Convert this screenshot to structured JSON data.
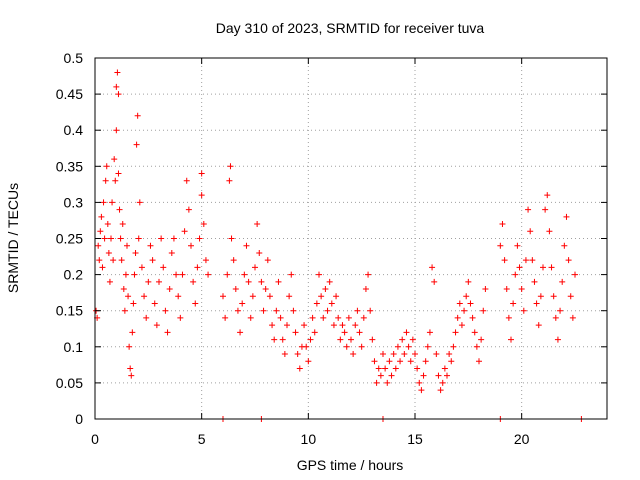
{
  "chart_data": {
    "type": "scatter",
    "title": "Day 310 of 2023, SRMTID for receiver tuva",
    "xlabel": "GPS time / hours",
    "ylabel": "SRMTID / TECUs",
    "xlim": [
      0,
      24
    ],
    "ylim": [
      0,
      0.5
    ],
    "x_ticks": [
      0,
      5,
      10,
      15,
      20
    ],
    "y_ticks": [
      0,
      0.05,
      0.1,
      0.15,
      0.2,
      0.25,
      0.3,
      0.35,
      0.4,
      0.45,
      0.5
    ],
    "x_tick_labels": [
      "0",
      "5",
      "10",
      "15",
      "20"
    ],
    "y_tick_labels": [
      "0",
      "0.05",
      "0.1",
      "0.15",
      "0.2",
      "0.25",
      "0.3",
      "0.35",
      "0.4",
      "0.45",
      "0.5"
    ],
    "grid": true,
    "marker": "+",
    "color": "#ff0000",
    "series": [
      {
        "values_xy": [
          [
            0.05,
            0.15
          ],
          [
            0.1,
            0.14
          ],
          [
            0.15,
            0.24
          ],
          [
            0.2,
            0.22
          ],
          [
            0.25,
            0.26
          ],
          [
            0.3,
            0.28
          ],
          [
            0.35,
            0.21
          ],
          [
            0.4,
            0.3
          ],
          [
            0.45,
            0.25
          ],
          [
            0.5,
            0.33
          ],
          [
            0.55,
            0.35
          ],
          [
            0.6,
            0.27
          ],
          [
            0.65,
            0.23
          ],
          [
            0.7,
            0.19
          ],
          [
            0.75,
            0.25
          ],
          [
            0.8,
            0.3
          ],
          [
            0.85,
            0.22
          ],
          [
            0.9,
            0.36
          ],
          [
            0.95,
            0.33
          ],
          [
            1.0,
            0.4
          ],
          [
            1.0,
            0.46
          ],
          [
            1.05,
            0.48
          ],
          [
            1.1,
            0.45
          ],
          [
            1.1,
            0.34
          ],
          [
            1.15,
            0.29
          ],
          [
            1.2,
            0.25
          ],
          [
            1.25,
            0.22
          ],
          [
            1.3,
            0.27
          ],
          [
            1.35,
            0.18
          ],
          [
            1.4,
            0.15
          ],
          [
            1.45,
            0.2
          ],
          [
            1.5,
            0.24
          ],
          [
            1.55,
            0.17
          ],
          [
            1.6,
            0.1
          ],
          [
            1.65,
            0.07
          ],
          [
            1.7,
            0.06
          ],
          [
            1.75,
            0.12
          ],
          [
            1.8,
            0.16
          ],
          [
            1.85,
            0.2
          ],
          [
            1.9,
            0.23
          ],
          [
            1.95,
            0.38
          ],
          [
            2.0,
            0.42
          ],
          [
            2.05,
            0.25
          ],
          [
            2.1,
            0.3
          ],
          [
            2.2,
            0.21
          ],
          [
            2.3,
            0.17
          ],
          [
            2.4,
            0.14
          ],
          [
            2.5,
            0.19
          ],
          [
            2.6,
            0.24
          ],
          [
            2.7,
            0.22
          ],
          [
            2.8,
            0.16
          ],
          [
            2.9,
            0.13
          ],
          [
            3.0,
            0.19
          ],
          [
            3.1,
            0.25
          ],
          [
            3.2,
            0.21
          ],
          [
            3.3,
            0.15
          ],
          [
            3.4,
            0.12
          ],
          [
            3.5,
            0.18
          ],
          [
            3.6,
            0.23
          ],
          [
            3.7,
            0.25
          ],
          [
            3.8,
            0.2
          ],
          [
            3.9,
            0.17
          ],
          [
            4.0,
            0.14
          ],
          [
            4.1,
            0.2
          ],
          [
            4.2,
            0.26
          ],
          [
            4.3,
            0.33
          ],
          [
            4.4,
            0.29
          ],
          [
            4.5,
            0.24
          ],
          [
            4.6,
            0.19
          ],
          [
            4.7,
            0.16
          ],
          [
            4.8,
            0.21
          ],
          [
            4.9,
            0.25
          ],
          [
            5.0,
            0.31
          ],
          [
            5.0,
            0.34
          ],
          [
            5.1,
            0.27
          ],
          [
            5.2,
            0.22
          ],
          [
            5.3,
            0.2
          ],
          [
            6.0,
            0.17
          ],
          [
            6.1,
            0.14
          ],
          [
            6.2,
            0.2
          ],
          [
            6.3,
            0.33
          ],
          [
            6.35,
            0.35
          ],
          [
            6.4,
            0.25
          ],
          [
            6.5,
            0.22
          ],
          [
            6.6,
            0.18
          ],
          [
            6.7,
            0.15
          ],
          [
            6.8,
            0.12
          ],
          [
            6.9,
            0.16
          ],
          [
            7.0,
            0.2
          ],
          [
            7.1,
            0.24
          ],
          [
            7.2,
            0.19
          ],
          [
            7.3,
            0.14
          ],
          [
            7.4,
            0.17
          ],
          [
            7.5,
            0.21
          ],
          [
            7.6,
            0.27
          ],
          [
            7.7,
            0.23
          ],
          [
            7.8,
            0.19
          ],
          [
            7.9,
            0.15
          ],
          [
            8.0,
            0.18
          ],
          [
            8.1,
            0.22
          ],
          [
            8.2,
            0.17
          ],
          [
            8.3,
            0.13
          ],
          [
            8.4,
            0.11
          ],
          [
            8.5,
            0.15
          ],
          [
            8.6,
            0.19
          ],
          [
            8.7,
            0.14
          ],
          [
            8.8,
            0.11
          ],
          [
            8.9,
            0.09
          ],
          [
            9.0,
            0.13
          ],
          [
            9.1,
            0.17
          ],
          [
            9.2,
            0.2
          ],
          [
            9.3,
            0.15
          ],
          [
            9.4,
            0.12
          ],
          [
            9.5,
            0.09
          ],
          [
            9.6,
            0.07
          ],
          [
            9.7,
            0.1
          ],
          [
            9.8,
            0.13
          ],
          [
            9.9,
            0.1
          ],
          [
            10.0,
            0.08
          ],
          [
            10.1,
            0.11
          ],
          [
            10.2,
            0.14
          ],
          [
            10.3,
            0.12
          ],
          [
            10.4,
            0.16
          ],
          [
            10.5,
            0.2
          ],
          [
            10.6,
            0.17
          ],
          [
            10.7,
            0.14
          ],
          [
            10.8,
            0.18
          ],
          [
            10.9,
            0.15
          ],
          [
            11.0,
            0.19
          ],
          [
            11.1,
            0.16
          ],
          [
            11.2,
            0.13
          ],
          [
            11.3,
            0.17
          ],
          [
            11.4,
            0.14
          ],
          [
            11.5,
            0.11
          ],
          [
            11.6,
            0.13
          ],
          [
            11.7,
            0.12
          ],
          [
            11.8,
            0.1
          ],
          [
            11.9,
            0.14
          ],
          [
            12.0,
            0.11
          ],
          [
            12.1,
            0.09
          ],
          [
            12.2,
            0.13
          ],
          [
            12.3,
            0.15
          ],
          [
            12.4,
            0.12
          ],
          [
            12.5,
            0.1
          ],
          [
            12.6,
            0.14
          ],
          [
            12.7,
            0.18
          ],
          [
            12.8,
            0.2
          ],
          [
            12.9,
            0.15
          ],
          [
            13.0,
            0.11
          ],
          [
            13.1,
            0.08
          ],
          [
            13.2,
            0.05
          ],
          [
            13.3,
            0.07
          ],
          [
            13.4,
            0.06
          ],
          [
            13.5,
            0.09
          ],
          [
            13.6,
            0.07
          ],
          [
            13.7,
            0.05
          ],
          [
            13.8,
            0.08
          ],
          [
            13.9,
            0.06
          ],
          [
            14.0,
            0.09
          ],
          [
            14.1,
            0.07
          ],
          [
            14.2,
            0.1
          ],
          [
            14.3,
            0.08
          ],
          [
            14.4,
            0.11
          ],
          [
            14.5,
            0.09
          ],
          [
            14.6,
            0.12
          ],
          [
            14.7,
            0.1
          ],
          [
            14.8,
            0.08
          ],
          [
            14.9,
            0.11
          ],
          [
            15.0,
            0.09
          ],
          [
            15.1,
            0.07
          ],
          [
            15.2,
            0.05
          ],
          [
            15.3,
            0.04
          ],
          [
            15.4,
            0.06
          ],
          [
            15.5,
            0.08
          ],
          [
            15.6,
            0.1
          ],
          [
            15.7,
            0.12
          ],
          [
            15.8,
            0.21
          ],
          [
            15.9,
            0.19
          ],
          [
            16.0,
            0.09
          ],
          [
            16.1,
            0.06
          ],
          [
            16.2,
            0.04
          ],
          [
            16.3,
            0.05
          ],
          [
            16.4,
            0.07
          ],
          [
            16.5,
            0.06
          ],
          [
            16.6,
            0.09
          ],
          [
            16.7,
            0.08
          ],
          [
            16.8,
            0.1
          ],
          [
            16.9,
            0.12
          ],
          [
            17.0,
            0.14
          ],
          [
            17.1,
            0.16
          ],
          [
            17.2,
            0.13
          ],
          [
            17.3,
            0.15
          ],
          [
            17.4,
            0.17
          ],
          [
            17.5,
            0.19
          ],
          [
            17.6,
            0.16
          ],
          [
            17.7,
            0.14
          ],
          [
            17.8,
            0.12
          ],
          [
            17.9,
            0.1
          ],
          [
            18.0,
            0.08
          ],
          [
            18.1,
            0.11
          ],
          [
            18.2,
            0.15
          ],
          [
            18.3,
            0.18
          ],
          [
            19.0,
            0.24
          ],
          [
            19.1,
            0.27
          ],
          [
            19.2,
            0.22
          ],
          [
            19.3,
            0.18
          ],
          [
            19.4,
            0.14
          ],
          [
            19.5,
            0.11
          ],
          [
            19.6,
            0.16
          ],
          [
            19.7,
            0.2
          ],
          [
            19.8,
            0.24
          ],
          [
            19.9,
            0.21
          ],
          [
            20.0,
            0.18
          ],
          [
            20.1,
            0.15
          ],
          [
            20.2,
            0.22
          ],
          [
            20.3,
            0.29
          ],
          [
            20.4,
            0.26
          ],
          [
            20.5,
            0.22
          ],
          [
            20.6,
            0.19
          ],
          [
            20.7,
            0.16
          ],
          [
            20.8,
            0.13
          ],
          [
            20.9,
            0.17
          ],
          [
            21.0,
            0.21
          ],
          [
            21.1,
            0.29
          ],
          [
            21.2,
            0.31
          ],
          [
            21.3,
            0.26
          ],
          [
            21.4,
            0.21
          ],
          [
            21.5,
            0.17
          ],
          [
            21.6,
            0.14
          ],
          [
            21.7,
            0.11
          ],
          [
            21.8,
            0.15
          ],
          [
            21.9,
            0.19
          ],
          [
            22.0,
            0.24
          ],
          [
            22.1,
            0.28
          ],
          [
            22.2,
            0.22
          ],
          [
            22.3,
            0.17
          ],
          [
            22.4,
            0.14
          ],
          [
            22.5,
            0.2
          ],
          [
            6.0,
            0.0
          ],
          [
            7.8,
            0.0
          ],
          [
            13.5,
            0.0
          ],
          [
            19.0,
            0.0
          ],
          [
            22.8,
            0.0
          ]
        ]
      }
    ]
  }
}
